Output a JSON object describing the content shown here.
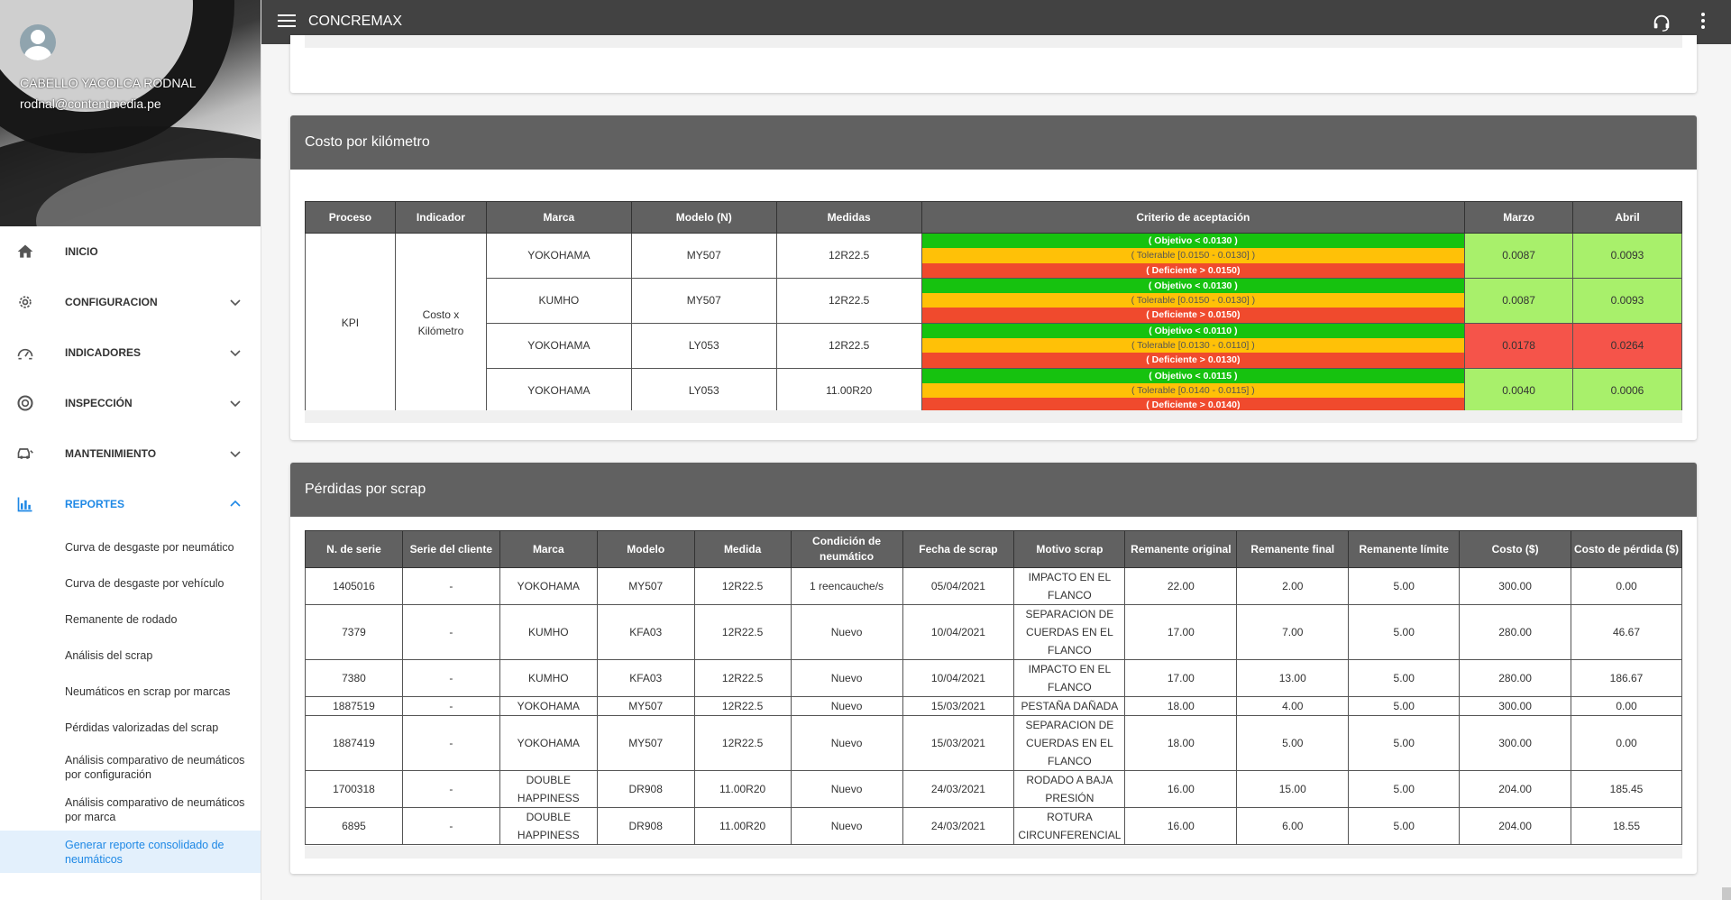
{
  "app": {
    "title": "CONCREMAX"
  },
  "user": {
    "name": "CABELLO YACOLCA RODNAL",
    "email": "rodnal@contentmedia.pe"
  },
  "sidebar": {
    "items": [
      {
        "label": "INICIO",
        "icon": "home-icon"
      },
      {
        "label": "CONFIGURACION",
        "icon": "gear-icon"
      },
      {
        "label": "INDICADORES",
        "icon": "speedometer-icon"
      },
      {
        "label": "INSPECCIÓN",
        "icon": "tire-icon"
      },
      {
        "label": "MANTENIMIENTO",
        "icon": "car-service-icon"
      },
      {
        "label": "REPORTES",
        "icon": "bar-chart-icon"
      }
    ],
    "report_items": [
      "Curva de desgaste por neumático",
      "Curva de desgaste por vehículo",
      "Remanente de rodado",
      "Análisis del scrap",
      "Neumáticos en scrap por marcas",
      "Pérdidas valorizadas del scrap",
      "Análisis comparativo de neumáticos por configuración",
      "Análisis comparativo de neumáticos por marca",
      "Generar reporte consolidado de neumáticos"
    ]
  },
  "kpi": {
    "title": "Costo por kilómetro",
    "headers": [
      "Proceso",
      "Indicador",
      "Marca",
      "Modelo (N)",
      "Medidas",
      "Criterio de aceptación",
      "Marzo",
      "Abril"
    ],
    "process": "KPI",
    "indicator": "Costo x Kilómetro",
    "rows": [
      {
        "marca": "YOKOHAMA",
        "modelo": "MY507",
        "medida": "12R22.5",
        "objetivo": "( Objetivo < 0.0130 )",
        "tolerable": "( Tolerable [0.0150 - 0.0130] )",
        "deficiente": "( Deficiente > 0.0150)",
        "marzo": "0.0087",
        "abril": "0.0093"
      },
      {
        "marca": "KUMHO",
        "modelo": "MY507",
        "medida": "12R22.5",
        "objetivo": "( Objetivo < 0.0130 )",
        "tolerable": "( Tolerable [0.0150 - 0.0130] )",
        "deficiente": "( Deficiente > 0.0150)",
        "marzo": "0.0087",
        "abril": "0.0093"
      },
      {
        "marca": "YOKOHAMA",
        "modelo": "LY053",
        "medida": "12R22.5",
        "objetivo": "( Objetivo < 0.0110 )",
        "tolerable": "( Tolerable [0.0130 - 0.0110] )",
        "deficiente": "( Deficiente > 0.0130)",
        "marzo": "0.0178",
        "abril": "0.0264"
      },
      {
        "marca": "YOKOHAMA",
        "modelo": "LY053",
        "medida": "11.00R20",
        "objetivo": "( Objetivo < 0.0115 )",
        "tolerable": "( Tolerable [0.0140 - 0.0115] )",
        "deficiente": "( Deficiente > 0.0140)",
        "marzo": "0.0040",
        "abril": "0.0006"
      }
    ],
    "status_colors": {
      "good": "#a8f06b",
      "bad": "#f5544a"
    }
  },
  "scrap": {
    "title": "Pérdidas por scrap",
    "headers": [
      "N. de serie",
      "Serie del cliente",
      "Marca",
      "Modelo",
      "Medida",
      "Condición de neumático",
      "Fecha de scrap",
      "Motivo scrap",
      "Remanente original",
      "Remanente final",
      "Remanente límite",
      "Costo ($)",
      "Costo de pérdida ($)"
    ],
    "rows": [
      {
        "serie": "1405016",
        "cliente": "-",
        "marca": "YOKOHAMA",
        "modelo": "MY507",
        "medida": "12R22.5",
        "condicion": "1 reencauche/s",
        "fecha": "05/04/2021",
        "motivo": "IMPACTO EN EL FLANCO",
        "rem_original": "22.00",
        "rem_final": "2.00",
        "rem_limite": "5.00",
        "costo": "300.00",
        "perdida": "0.00"
      },
      {
        "serie": "7379",
        "cliente": "-",
        "marca": "KUMHO",
        "modelo": "KFA03",
        "medida": "12R22.5",
        "condicion": "Nuevo",
        "fecha": "10/04/2021",
        "motivo": "SEPARACION DE CUERDAS EN EL FLANCO",
        "rem_original": "17.00",
        "rem_final": "7.00",
        "rem_limite": "5.00",
        "costo": "280.00",
        "perdida": "46.67"
      },
      {
        "serie": "7380",
        "cliente": "-",
        "marca": "KUMHO",
        "modelo": "KFA03",
        "medida": "12R22.5",
        "condicion": "Nuevo",
        "fecha": "10/04/2021",
        "motivo": "IMPACTO EN EL FLANCO",
        "rem_original": "17.00",
        "rem_final": "13.00",
        "rem_limite": "5.00",
        "costo": "280.00",
        "perdida": "186.67"
      },
      {
        "serie": "1887519",
        "cliente": "-",
        "marca": "YOKOHAMA",
        "modelo": "MY507",
        "medida": "12R22.5",
        "condicion": "Nuevo",
        "fecha": "15/03/2021",
        "motivo": "PESTAÑA DAÑADA",
        "rem_original": "18.00",
        "rem_final": "4.00",
        "rem_limite": "5.00",
        "costo": "300.00",
        "perdida": "0.00"
      },
      {
        "serie": "1887419",
        "cliente": "-",
        "marca": "YOKOHAMA",
        "modelo": "MY507",
        "medida": "12R22.5",
        "condicion": "Nuevo",
        "fecha": "15/03/2021",
        "motivo": "SEPARACION DE CUERDAS EN EL FLANCO",
        "rem_original": "18.00",
        "rem_final": "5.00",
        "rem_limite": "5.00",
        "costo": "300.00",
        "perdida": "0.00"
      },
      {
        "serie": "1700318",
        "cliente": "-",
        "marca": "DOUBLE HAPPINESS",
        "modelo": "DR908",
        "medida": "11.00R20",
        "condicion": "Nuevo",
        "fecha": "24/03/2021",
        "motivo": "RODADO A BAJA PRESIÓN",
        "rem_original": "16.00",
        "rem_final": "15.00",
        "rem_limite": "5.00",
        "costo": "204.00",
        "perdida": "185.45"
      },
      {
        "serie": "6895",
        "cliente": "-",
        "marca": "DOUBLE HAPPINESS",
        "modelo": "DR908",
        "medida": "11.00R20",
        "condicion": "Nuevo",
        "fecha": "24/03/2021",
        "motivo": "ROTURA CIRCUNFERENCIAL",
        "rem_original": "16.00",
        "rem_final": "6.00",
        "rem_limite": "5.00",
        "costo": "204.00",
        "perdida": "18.55"
      }
    ]
  },
  "colors": {
    "topbar": "#424242",
    "card_header": "#616161",
    "accent": "#1e88e5",
    "objetivo": "#16c20f",
    "tolerable": "#ffc107",
    "deficiente": "#f04a2d"
  }
}
